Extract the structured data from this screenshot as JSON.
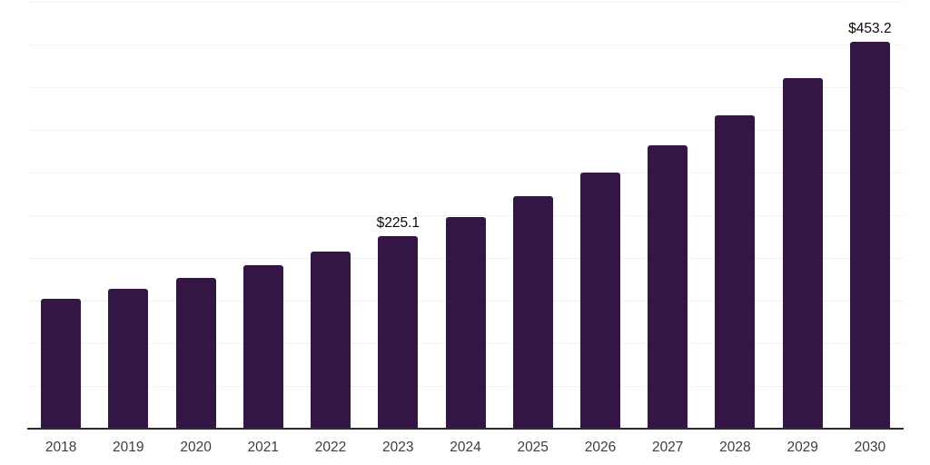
{
  "chart_data": {
    "type": "bar",
    "title": "",
    "xlabel": "",
    "ylabel": "",
    "categories": [
      "2018",
      "2019",
      "2020",
      "2021",
      "2022",
      "2023",
      "2024",
      "2025",
      "2026",
      "2027",
      "2028",
      "2029",
      "2030"
    ],
    "values": [
      152.0,
      164.0,
      176.5,
      191.5,
      207.5,
      225.1,
      248.0,
      272.5,
      300.0,
      332.0,
      367.0,
      410.5,
      453.2
    ],
    "data_labels": [
      {
        "category": "2023",
        "text": "$225.1"
      },
      {
        "category": "2030",
        "text": "$453.2"
      }
    ],
    "value_prefix": "$",
    "ylim": [
      0,
      500
    ],
    "gridline_step": 50,
    "grid": true,
    "legend_position": "none",
    "colors": {
      "bar": "#331546",
      "gridline": "#f2f1f3",
      "axis_line": "#2b2b2b",
      "tick_label": "#3d3d3d",
      "data_label": "#0a0a0a",
      "background": "#ffffff"
    }
  }
}
